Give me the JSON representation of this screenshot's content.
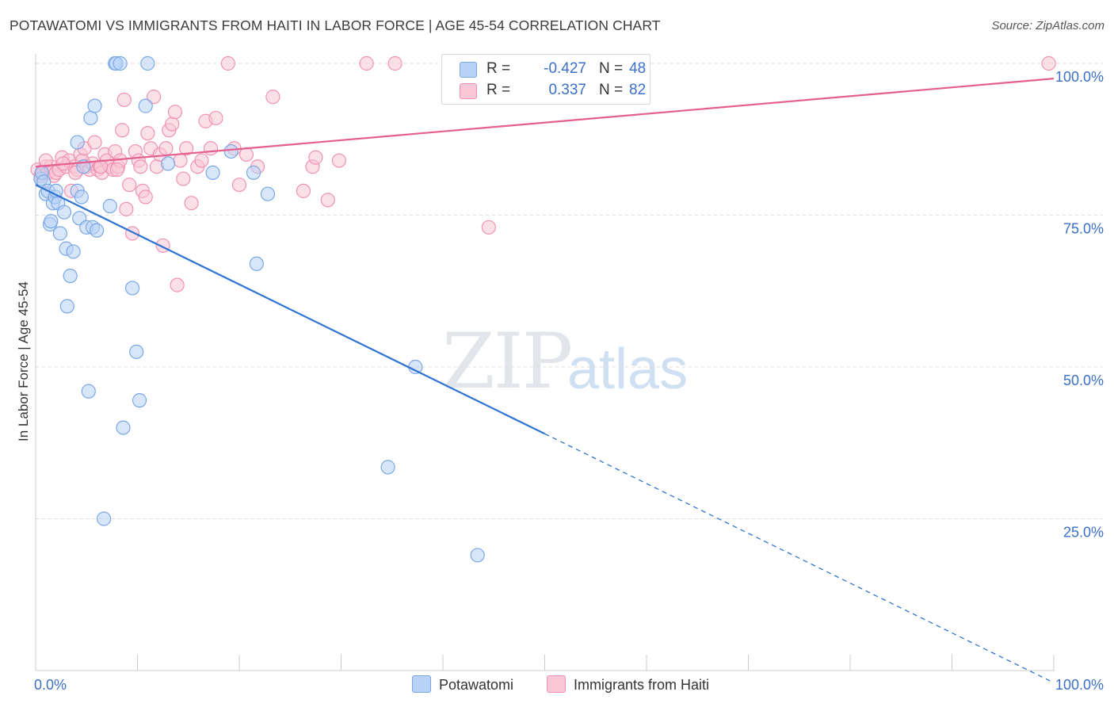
{
  "title": "POTAWATOMI VS IMMIGRANTS FROM HAITI IN LABOR FORCE | AGE 45-54 CORRELATION CHART",
  "source": "Source: ZipAtlas.com",
  "watermark": {
    "zip": "ZIP",
    "atlas": "atlas"
  },
  "colors": {
    "blue_fill": "#b8d2f6",
    "blue_stroke": "#7aa8e6",
    "blue_line": "#2f74d0",
    "pink_fill": "#f9c6d6",
    "pink_stroke": "#ef93b2",
    "pink_line": "#e45f8f",
    "axis_text": "#3b6fc8",
    "grid": "#dddddd"
  },
  "legend": {
    "rows": [
      {
        "r_label": "R =",
        "r_value": "-0.427",
        "n_label": "N =",
        "n_value": "48"
      },
      {
        "r_label": "R =",
        "r_value": "0.337",
        "n_label": "N =",
        "n_value": "82"
      }
    ]
  },
  "bottom_legend": [
    "Potawatomi",
    "Immigrants from Haiti"
  ],
  "chart_data": {
    "type": "scatter",
    "title": "POTAWATOMI VS IMMIGRANTS FROM HAITI IN LABOR FORCE | AGE 45-54 CORRELATION CHART",
    "xlabel": "",
    "ylabel": "In Labor Force | Age 45-54",
    "xlim": [
      0,
      100
    ],
    "ylim": [
      0,
      100
    ],
    "x_tick_labels": [
      "0.0%",
      "100.0%"
    ],
    "y_ticks": [
      25,
      50,
      75,
      100
    ],
    "y_tick_labels": [
      "25.0%",
      "50.0%",
      "75.0%",
      "100.0%"
    ],
    "grid": true,
    "legend_position": "top-center",
    "series": [
      {
        "name": "Potawatomi",
        "R": -0.427,
        "N": 48,
        "trend": {
          "x": [
            0,
            50
          ],
          "y": [
            80,
            39
          ],
          "dashed_to": [
            100,
            -2
          ]
        },
        "points": [
          [
            0.5,
            81
          ],
          [
            0.6,
            82
          ],
          [
            0.8,
            80.5
          ],
          [
            1.0,
            78.5
          ],
          [
            1.2,
            79
          ],
          [
            1.4,
            73.5
          ],
          [
            1.5,
            74
          ],
          [
            1.7,
            77
          ],
          [
            1.9,
            78
          ],
          [
            2.0,
            79
          ],
          [
            2.2,
            77
          ],
          [
            2.4,
            72
          ],
          [
            2.8,
            75.5
          ],
          [
            3.0,
            69.5
          ],
          [
            3.1,
            60
          ],
          [
            3.4,
            65
          ],
          [
            3.7,
            69
          ],
          [
            4.1,
            79
          ],
          [
            4.1,
            87
          ],
          [
            4.3,
            74.5
          ],
          [
            4.5,
            78
          ],
          [
            4.7,
            83
          ],
          [
            5.0,
            73
          ],
          [
            5.2,
            46
          ],
          [
            5.4,
            91
          ],
          [
            5.6,
            73
          ],
          [
            5.8,
            93
          ],
          [
            6.0,
            72.5
          ],
          [
            6.7,
            25
          ],
          [
            7.3,
            76.5
          ],
          [
            7.8,
            100
          ],
          [
            7.9,
            100
          ],
          [
            8.3,
            100
          ],
          [
            8.6,
            40
          ],
          [
            9.5,
            63
          ],
          [
            9.9,
            52.5
          ],
          [
            10.2,
            44.5
          ],
          [
            10.8,
            93
          ],
          [
            11.0,
            100
          ],
          [
            13.0,
            83.5
          ],
          [
            17.4,
            82
          ],
          [
            19.2,
            85.5
          ],
          [
            21.4,
            82
          ],
          [
            21.7,
            67
          ],
          [
            22.8,
            78.5
          ],
          [
            37.3,
            50
          ],
          [
            34.6,
            33.5
          ],
          [
            43.4,
            19
          ]
        ]
      },
      {
        "name": "Immigrants from Haiti",
        "R": 0.337,
        "N": 82,
        "trend": {
          "x": [
            0,
            100
          ],
          "y": [
            83,
            97.5
          ]
        },
        "points": [
          [
            0.2,
            82.5
          ],
          [
            0.5,
            81.5
          ],
          [
            0.7,
            82
          ],
          [
            1.0,
            83
          ],
          [
            1.2,
            82
          ],
          [
            1.5,
            83
          ],
          [
            1.8,
            81.5
          ],
          [
            2.0,
            82
          ],
          [
            2.3,
            82.5
          ],
          [
            2.6,
            84.5
          ],
          [
            3.0,
            83
          ],
          [
            3.3,
            84
          ],
          [
            3.5,
            79
          ],
          [
            3.8,
            83
          ],
          [
            4.1,
            82.5
          ],
          [
            4.4,
            85
          ],
          [
            4.6,
            84
          ],
          [
            4.8,
            86
          ],
          [
            5.0,
            83
          ],
          [
            5.3,
            82.5
          ],
          [
            5.6,
            83.5
          ],
          [
            5.8,
            87
          ],
          [
            6.1,
            82.5
          ],
          [
            6.3,
            83
          ],
          [
            6.5,
            82
          ],
          [
            6.8,
            85
          ],
          [
            7.0,
            84
          ],
          [
            7.3,
            83
          ],
          [
            7.6,
            82.5
          ],
          [
            7.8,
            85.5
          ],
          [
            8.1,
            83
          ],
          [
            8.3,
            84
          ],
          [
            8.5,
            89
          ],
          [
            8.7,
            94
          ],
          [
            8.9,
            76
          ],
          [
            9.2,
            80
          ],
          [
            9.5,
            72
          ],
          [
            9.8,
            85.5
          ],
          [
            10.1,
            84
          ],
          [
            10.3,
            83
          ],
          [
            10.5,
            79
          ],
          [
            10.8,
            78
          ],
          [
            11.0,
            88.5
          ],
          [
            11.3,
            86
          ],
          [
            11.6,
            94.5
          ],
          [
            11.9,
            83
          ],
          [
            12.2,
            85
          ],
          [
            12.5,
            70
          ],
          [
            12.8,
            86
          ],
          [
            13.1,
            89
          ],
          [
            13.4,
            90
          ],
          [
            13.7,
            92
          ],
          [
            13.9,
            63.5
          ],
          [
            14.2,
            84
          ],
          [
            14.5,
            81
          ],
          [
            14.8,
            86
          ],
          [
            15.3,
            77
          ],
          [
            15.9,
            83
          ],
          [
            16.3,
            84
          ],
          [
            16.7,
            90.5
          ],
          [
            17.2,
            86
          ],
          [
            17.7,
            91
          ],
          [
            18.9,
            100
          ],
          [
            19.5,
            86
          ],
          [
            20.0,
            80
          ],
          [
            20.7,
            85
          ],
          [
            21.8,
            83
          ],
          [
            23.3,
            94.5
          ],
          [
            26.3,
            79
          ],
          [
            27.2,
            83
          ],
          [
            27.5,
            84.5
          ],
          [
            28.7,
            77.5
          ],
          [
            29.8,
            84
          ],
          [
            32.5,
            100
          ],
          [
            35.3,
            100
          ],
          [
            44.5,
            73
          ],
          [
            99.5,
            100
          ],
          [
            1.0,
            84
          ],
          [
            2.7,
            83.5
          ],
          [
            6.4,
            83
          ],
          [
            8.0,
            82.5
          ],
          [
            3.9,
            82
          ]
        ]
      }
    ]
  }
}
